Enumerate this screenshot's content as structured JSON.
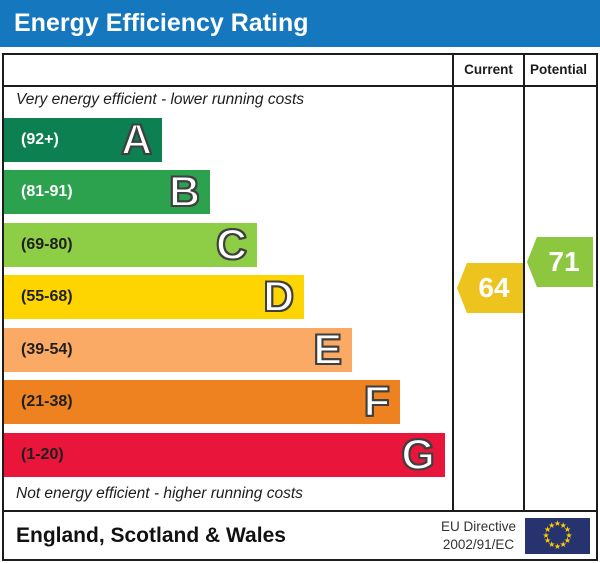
{
  "title": "Energy Efficiency Rating",
  "table": {
    "columns": {
      "current": "Current",
      "potential": "Potential"
    },
    "top_note": "Very energy efficient - lower running costs",
    "bottom_note": "Not energy efficient - higher running costs",
    "bands": [
      {
        "letter": "A",
        "range": "(92+)",
        "color": "#0c8050",
        "range_color": "#ffffff",
        "width_pct": 35.3
      },
      {
        "letter": "B",
        "range": "(81-91)",
        "color": "#2ca24f",
        "range_color": "#ffffff",
        "width_pct": 46.0
      },
      {
        "letter": "C",
        "range": "(69-80)",
        "color": "#8dce46",
        "range_color": "#1f1f1f",
        "width_pct": 56.5
      },
      {
        "letter": "D",
        "range": "(55-68)",
        "color": "#ffd500",
        "range_color": "#1f1f1f",
        "width_pct": 67.0
      },
      {
        "letter": "E",
        "range": "(39-54)",
        "color": "#fbaa65",
        "range_color": "#1f1f1f",
        "width_pct": 77.7
      },
      {
        "letter": "F",
        "range": "(21-38)",
        "color": "#ee8220",
        "range_color": "#1f1f1f",
        "width_pct": 88.4
      },
      {
        "letter": "G",
        "range": "(1-20)",
        "color": "#e9153b",
        "range_color": "#1f1f1f",
        "width_pct": 98.4
      }
    ],
    "ratings": {
      "current": {
        "value": 64,
        "band": "D",
        "color": "#edc41e"
      },
      "potential": {
        "value": 71,
        "band": "C",
        "color": "#8dc63f"
      }
    }
  },
  "footer": {
    "region": "England, Scotland & Wales",
    "directive_line1": "EU Directive",
    "directive_line2": "2002/91/EC",
    "flag_background": "#27336f",
    "flag_star_color": "#ffcc00"
  },
  "chart_data": {
    "type": "bar",
    "title": "Energy Efficiency Rating",
    "categories": [
      "A",
      "B",
      "C",
      "D",
      "E",
      "F",
      "G"
    ],
    "band_ranges": [
      "92+",
      "81-91",
      "69-80",
      "55-68",
      "39-54",
      "21-38",
      "1-20"
    ],
    "band_colors": [
      "#0c8050",
      "#2ca24f",
      "#8dce46",
      "#ffd500",
      "#fbaa65",
      "#ee8220",
      "#e9153b"
    ],
    "bar_width_pct": [
      35.3,
      46.0,
      56.5,
      67.0,
      77.7,
      88.4,
      98.4
    ],
    "scale_min": 1,
    "scale_max": 100,
    "series": [
      {
        "name": "Current",
        "value": 64,
        "band": "D"
      },
      {
        "name": "Potential",
        "value": 71,
        "band": "C"
      }
    ],
    "annotations": [
      "Very energy efficient - lower running costs",
      "Not energy efficient - higher running costs"
    ],
    "footnote": "England, Scotland & Wales — EU Directive 2002/91/EC"
  }
}
